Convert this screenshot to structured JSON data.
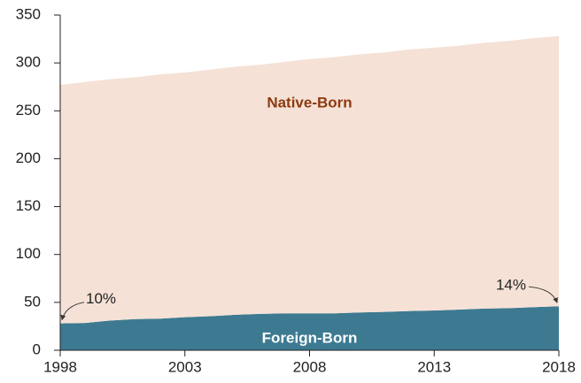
{
  "chart_data": {
    "type": "stacked_area",
    "x": [
      1998,
      1999,
      2000,
      2001,
      2002,
      2003,
      2004,
      2005,
      2006,
      2007,
      2008,
      2009,
      2010,
      2011,
      2012,
      2013,
      2014,
      2015,
      2016,
      2017,
      2018
    ],
    "series": [
      {
        "name": "Foreign-Born",
        "color": "#3d7a91",
        "values": [
          28,
          28.5,
          31,
          32.5,
          33,
          34.5,
          35.5,
          37,
          38,
          38.5,
          38.5,
          38.5,
          39.5,
          40,
          41,
          41.5,
          42.5,
          43.5,
          44,
          45,
          46
        ]
      },
      {
        "name": "Native-Born",
        "color": "#f5e1d6",
        "values": [
          249,
          251.5,
          252,
          252.5,
          255,
          255.5,
          257.5,
          259,
          260,
          262.5,
          265.5,
          267.5,
          269.5,
          271,
          273,
          274.5,
          275.5,
          277.5,
          279,
          281,
          282
        ]
      }
    ],
    "annotations": [
      "10%",
      "14%"
    ],
    "xlim": [
      1998,
      2018
    ],
    "xticks": [
      1998,
      2003,
      2008,
      2013,
      2018
    ],
    "ylim": [
      0,
      350
    ],
    "yticks": [
      0,
      50,
      100,
      150,
      200,
      250,
      300,
      350
    ]
  }
}
